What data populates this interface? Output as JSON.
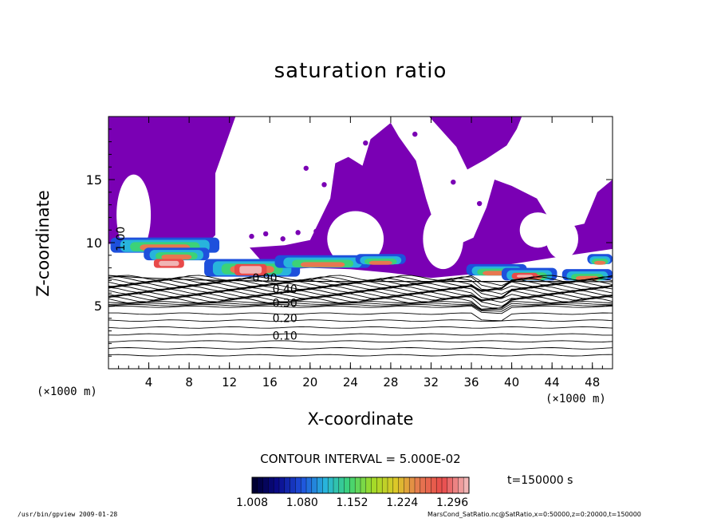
{
  "chart_data": {
    "type": "heatmap",
    "title": "saturation ratio",
    "xlabel": "X-coordinate",
    "ylabel": "Z-coordinate",
    "x_unit": "(×1000 m)",
    "xlim": [
      0,
      50
    ],
    "ylim": [
      0,
      20
    ],
    "x_ticks": [
      "4",
      "8",
      "12",
      "16",
      "20",
      "24",
      "28",
      "32",
      "36",
      "40",
      "44",
      "48"
    ],
    "y_ticks": [
      "5",
      "10",
      "15"
    ],
    "contour_interval_text": "CONTOUR INTERVAL = 5.000E-02",
    "contour_labels": [
      "1.00",
      "0.90",
      "0.40",
      "0.30",
      "0.20",
      "0.10"
    ],
    "colorbar": {
      "min": 1.008,
      "max": 1.32,
      "tick_labels": [
        "1.008",
        "1.080",
        "1.152",
        "1.224",
        "1.296"
      ],
      "colors": [
        "#000033",
        "#0a0a8c",
        "#1e50dc",
        "#28b4dc",
        "#3cd278",
        "#a0dc28",
        "#dcc828",
        "#e67850",
        "#e84a4a",
        "#f0b4b4"
      ]
    },
    "time_label": "t=150000 s",
    "palette": {
      "saturated": "#7a00b4",
      "contour": "#000000"
    }
  },
  "footer": {
    "left": "/usr/bin/gpview   2009-01-28",
    "right": "MarsCond_SatRatio.nc@SatRatio,x=0:50000,z=0:20000,t=150000"
  }
}
